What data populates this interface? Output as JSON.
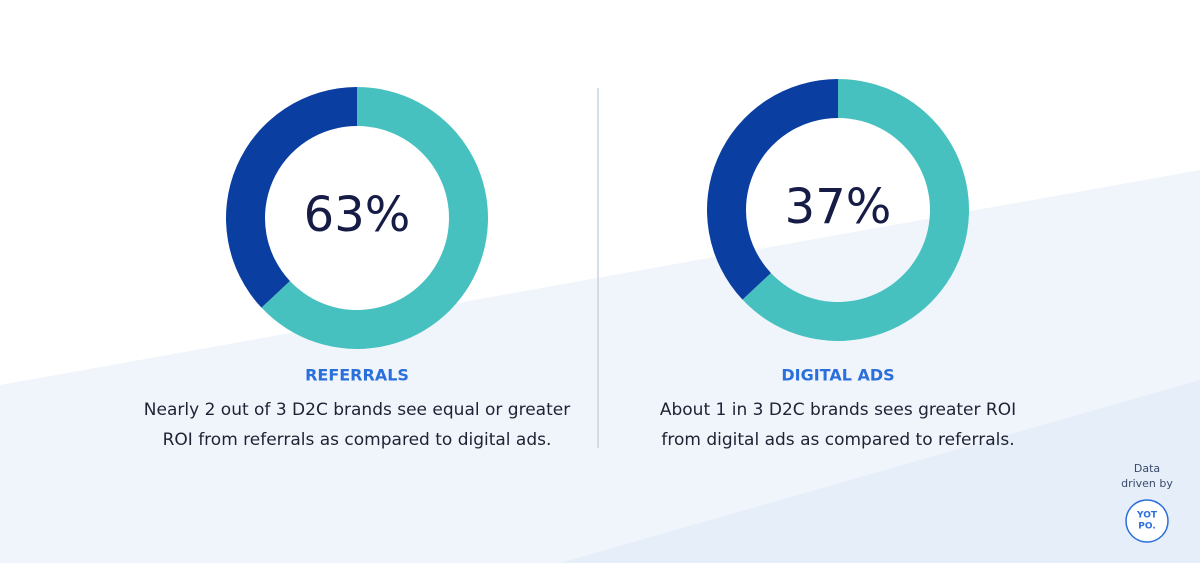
{
  "chart_data": [
    {
      "type": "donut",
      "values": [
        63,
        37
      ],
      "colors": [
        "#47c1bf",
        "#0a3ea0"
      ],
      "center": {
        "value": 63,
        "label": "63%"
      },
      "title": "REFERRALS",
      "description": [
        "Nearly 2 out of 3 D2C brands see equal or greater",
        "ROI from referrals as compared to digital ads."
      ]
    },
    {
      "type": "donut",
      "values": [
        63,
        37
      ],
      "colors": [
        "#47c1bf",
        "#0a3ea0"
      ],
      "center": {
        "value": 37,
        "label": "37%"
      },
      "title": "DIGITAL ADS",
      "description": [
        "About 1 in 3 D2C brands sees greater ROI",
        "from digital ads as compared to referrals."
      ]
    }
  ],
  "footer": {
    "text": [
      "Data",
      "driven by"
    ],
    "logo": [
      "YOT",
      "PO."
    ]
  }
}
